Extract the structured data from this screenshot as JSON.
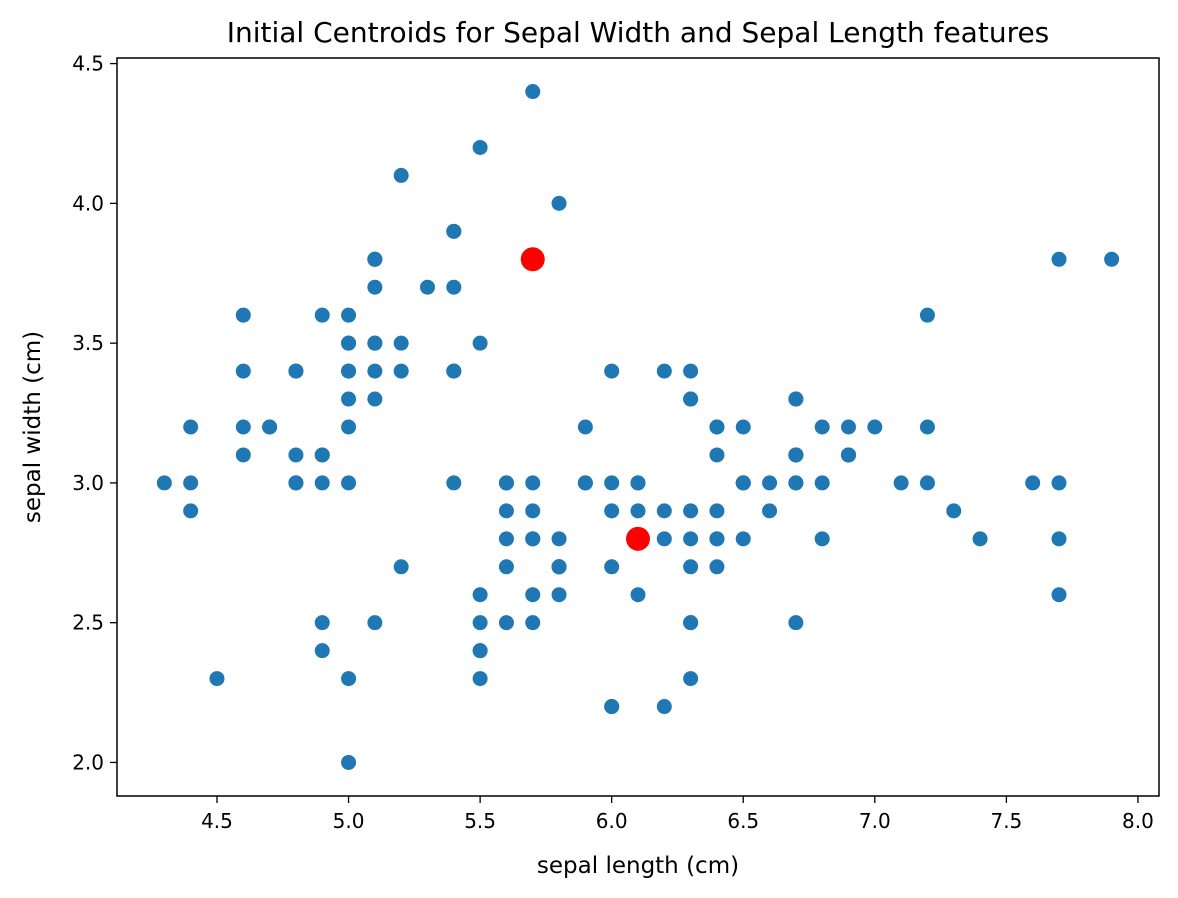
{
  "chart_data": {
    "type": "scatter",
    "title": "Initial Centroids for Sepal Width and Sepal Length features",
    "xlabel": "sepal length (cm)",
    "ylabel": "sepal width (cm)",
    "xlim": [
      4.12,
      8.08
    ],
    "ylim": [
      1.88,
      4.52
    ],
    "x_ticks": [
      "4.5",
      "5.0",
      "5.5",
      "6.0",
      "6.5",
      "7.0",
      "7.5",
      "8.0"
    ],
    "y_ticks": [
      "2.0",
      "2.5",
      "3.0",
      "3.5",
      "4.0",
      "4.5"
    ],
    "grid": false,
    "legend": "none",
    "series": [
      {
        "color": "#1f77b4",
        "points": [
          [
            5.1,
            3.5
          ],
          [
            4.9,
            3.0
          ],
          [
            4.7,
            3.2
          ],
          [
            4.6,
            3.1
          ],
          [
            5.0,
            3.6
          ],
          [
            5.4,
            3.9
          ],
          [
            4.6,
            3.4
          ],
          [
            5.0,
            3.4
          ],
          [
            4.4,
            2.9
          ],
          [
            4.9,
            3.1
          ],
          [
            5.4,
            3.7
          ],
          [
            4.8,
            3.4
          ],
          [
            4.8,
            3.0
          ],
          [
            4.3,
            3.0
          ],
          [
            5.8,
            4.0
          ],
          [
            5.7,
            4.4
          ],
          [
            5.4,
            3.9
          ],
          [
            5.1,
            3.5
          ],
          [
            5.7,
            3.8
          ],
          [
            5.1,
            3.8
          ],
          [
            5.4,
            3.4
          ],
          [
            5.1,
            3.7
          ],
          [
            4.6,
            3.6
          ],
          [
            5.1,
            3.3
          ],
          [
            4.8,
            3.4
          ],
          [
            5.0,
            3.0
          ],
          [
            5.0,
            3.4
          ],
          [
            5.2,
            3.5
          ],
          [
            5.2,
            3.4
          ],
          [
            4.7,
            3.2
          ],
          [
            4.8,
            3.1
          ],
          [
            5.4,
            3.4
          ],
          [
            5.2,
            4.1
          ],
          [
            5.5,
            4.2
          ],
          [
            4.9,
            3.1
          ],
          [
            5.0,
            3.2
          ],
          [
            5.5,
            3.5
          ],
          [
            4.9,
            3.6
          ],
          [
            4.4,
            3.0
          ],
          [
            5.1,
            3.4
          ],
          [
            5.0,
            3.5
          ],
          [
            4.5,
            2.3
          ],
          [
            4.4,
            3.2
          ],
          [
            5.0,
            3.5
          ],
          [
            5.1,
            3.8
          ],
          [
            4.8,
            3.0
          ],
          [
            5.1,
            3.8
          ],
          [
            4.6,
            3.2
          ],
          [
            5.3,
            3.7
          ],
          [
            5.0,
            3.3
          ],
          [
            7.0,
            3.2
          ],
          [
            6.4,
            3.2
          ],
          [
            6.9,
            3.1
          ],
          [
            5.5,
            2.3
          ],
          [
            6.5,
            2.8
          ],
          [
            5.7,
            2.8
          ],
          [
            6.3,
            3.3
          ],
          [
            4.9,
            2.4
          ],
          [
            6.6,
            2.9
          ],
          [
            5.2,
            2.7
          ],
          [
            5.0,
            2.0
          ],
          [
            5.9,
            3.0
          ],
          [
            6.0,
            2.2
          ],
          [
            6.1,
            2.9
          ],
          [
            5.6,
            2.9
          ],
          [
            6.7,
            3.1
          ],
          [
            5.6,
            3.0
          ],
          [
            5.8,
            2.7
          ],
          [
            6.2,
            2.2
          ],
          [
            5.6,
            2.5
          ],
          [
            5.9,
            3.2
          ],
          [
            6.1,
            2.8
          ],
          [
            6.3,
            2.5
          ],
          [
            6.1,
            2.8
          ],
          [
            6.4,
            2.9
          ],
          [
            6.6,
            3.0
          ],
          [
            6.8,
            2.8
          ],
          [
            6.7,
            3.0
          ],
          [
            6.0,
            2.9
          ],
          [
            5.7,
            2.6
          ],
          [
            5.5,
            2.4
          ],
          [
            5.5,
            2.4
          ],
          [
            5.8,
            2.7
          ],
          [
            6.0,
            2.7
          ],
          [
            5.4,
            3.0
          ],
          [
            6.0,
            3.4
          ],
          [
            6.7,
            3.1
          ],
          [
            6.3,
            2.3
          ],
          [
            5.6,
            3.0
          ],
          [
            5.5,
            2.5
          ],
          [
            5.5,
            2.6
          ],
          [
            6.1,
            3.0
          ],
          [
            5.8,
            2.6
          ],
          [
            5.0,
            2.3
          ],
          [
            5.6,
            2.7
          ],
          [
            5.7,
            3.0
          ],
          [
            5.7,
            2.9
          ],
          [
            6.2,
            2.9
          ],
          [
            5.1,
            2.5
          ],
          [
            5.7,
            2.8
          ],
          [
            6.3,
            3.3
          ],
          [
            5.8,
            2.7
          ],
          [
            7.1,
            3.0
          ],
          [
            6.3,
            2.9
          ],
          [
            6.5,
            3.0
          ],
          [
            7.6,
            3.0
          ],
          [
            4.9,
            2.5
          ],
          [
            7.3,
            2.9
          ],
          [
            6.7,
            2.5
          ],
          [
            7.2,
            3.6
          ],
          [
            6.5,
            3.2
          ],
          [
            6.4,
            2.7
          ],
          [
            6.8,
            3.0
          ],
          [
            5.7,
            2.5
          ],
          [
            5.8,
            2.8
          ],
          [
            6.4,
            3.2
          ],
          [
            6.5,
            3.0
          ],
          [
            7.7,
            3.8
          ],
          [
            7.7,
            2.6
          ],
          [
            6.0,
            2.2
          ],
          [
            6.9,
            3.2
          ],
          [
            5.6,
            2.8
          ],
          [
            7.7,
            2.8
          ],
          [
            6.3,
            2.7
          ],
          [
            6.7,
            3.3
          ],
          [
            7.2,
            3.2
          ],
          [
            6.2,
            2.8
          ],
          [
            6.1,
            3.0
          ],
          [
            6.4,
            2.8
          ],
          [
            7.2,
            3.0
          ],
          [
            7.4,
            2.8
          ],
          [
            7.9,
            3.8
          ],
          [
            6.4,
            2.8
          ],
          [
            6.3,
            2.8
          ],
          [
            6.1,
            2.6
          ],
          [
            7.7,
            3.0
          ],
          [
            6.3,
            3.4
          ],
          [
            6.4,
            3.1
          ],
          [
            6.0,
            3.0
          ],
          [
            6.9,
            3.1
          ],
          [
            6.7,
            3.1
          ],
          [
            6.9,
            3.1
          ],
          [
            5.8,
            2.7
          ],
          [
            6.8,
            3.2
          ],
          [
            6.7,
            3.3
          ],
          [
            6.7,
            3.0
          ],
          [
            6.3,
            2.5
          ],
          [
            6.5,
            3.0
          ],
          [
            6.2,
            3.4
          ],
          [
            5.9,
            3.0
          ]
        ]
      },
      {
        "color": "#ff0000",
        "points": [
          [
            5.7,
            3.8
          ],
          [
            6.1,
            2.8
          ]
        ]
      }
    ]
  }
}
